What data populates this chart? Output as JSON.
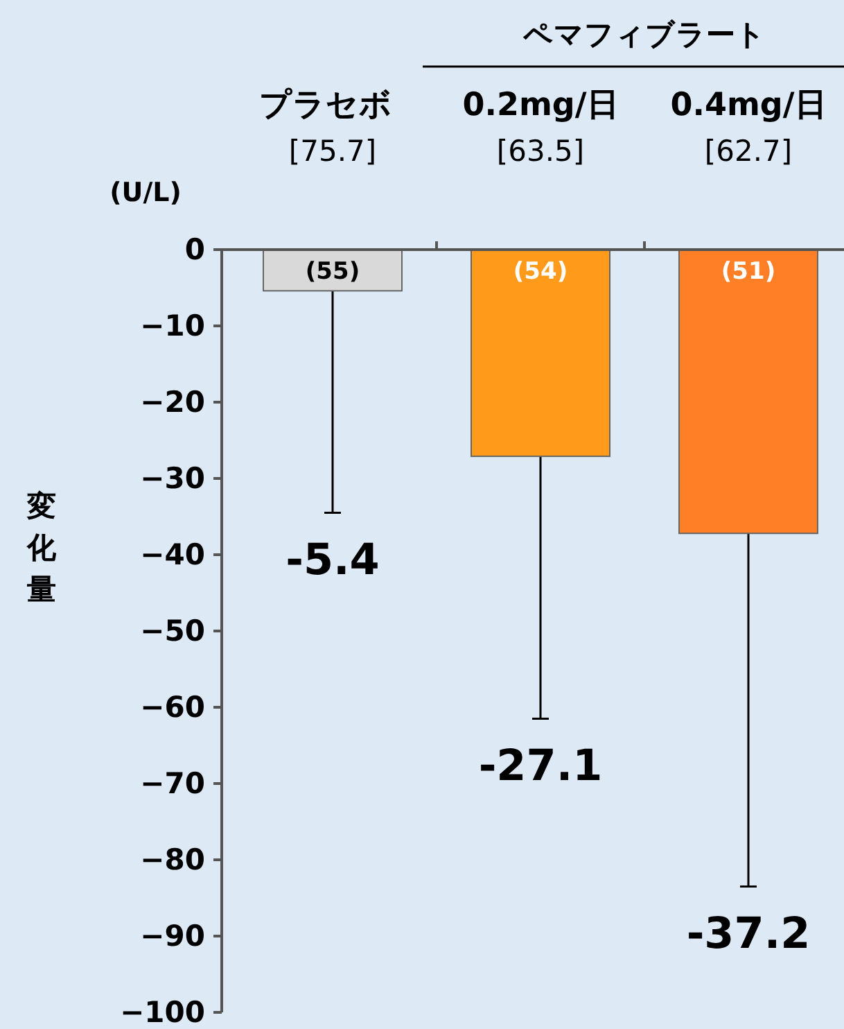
{
  "chart_data": {
    "type": "bar",
    "ylabel": "変化量",
    "categories": [
      "プラセボ",
      "0.2mg/日",
      "0.4mg/日"
    ],
    "values": [
      -5.4,
      -27.1,
      -37.2
    ],
    "colors": [
      "#d9d9d9",
      "#ff9a1a",
      "#ff7f27"
    ],
    "errors": [
      [
        -34.5,
        -5.4
      ],
      [
        -61.5,
        -27.1
      ],
      [
        -83.5,
        -37.2
      ]
    ],
    "ylim": [
      -100,
      0
    ],
    "yticks": [
      0,
      -10,
      -20,
      -30,
      -40,
      -50,
      -60,
      -70,
      -80,
      -90,
      -100
    ],
    "annotations": [
      "ペマフィブラート",
      "(U/L)",
      "[75.7]",
      "[63.5]",
      "[62.7]",
      "(55)",
      "(54)",
      "(51)",
      "-5.4",
      "-27.1",
      "-37.2"
    ]
  }
}
